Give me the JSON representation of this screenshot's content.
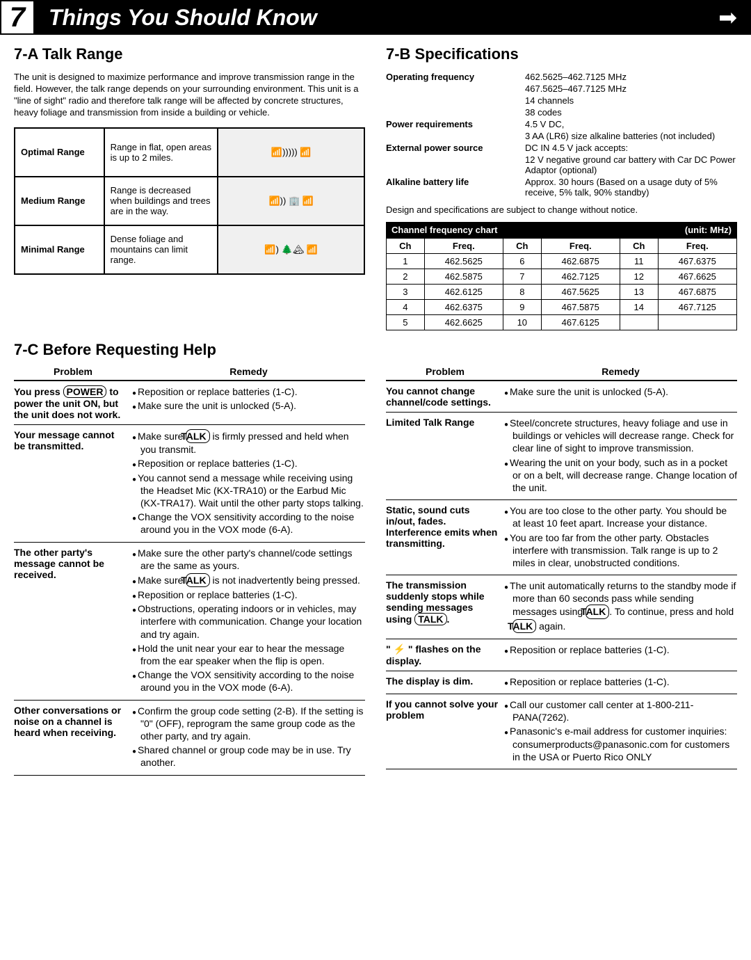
{
  "header": {
    "number": "7",
    "title": "Things You Should Know"
  },
  "sectionA": {
    "title": "7-A  Talk Range",
    "intro": "The unit is designed to maximize performance and improve transmission range in the field. However, the talk range depends on your surrounding environment. This unit is a \"line of sight\" radio and therefore talk range will be affected by concrete structures, heavy foliage and transmission from inside a building or vehicle.",
    "rows": [
      {
        "label": "Optimal Range",
        "desc": "Range in flat, open areas is up to 2 miles."
      },
      {
        "label": "Medium Range",
        "desc": "Range is decreased when buildings and trees are in the way."
      },
      {
        "label": "Minimal Range",
        "desc": "Dense foliage and mountains can limit range."
      }
    ]
  },
  "sectionB": {
    "title": "7-B  Specifications",
    "specs": [
      {
        "label": "Operating frequency",
        "value": "462.5625–462.7125 MHz\n467.5625–467.7125 MHz\n14 channels\n38 codes"
      },
      {
        "label": "Power requirements",
        "value": "4.5 V DC,\n3 AA (LR6) size alkaline batteries (not included)"
      },
      {
        "label": "External power source",
        "value": "DC IN 4.5 V jack accepts:\n12 V negative ground car battery with Car DC Power Adaptor (optional)"
      },
      {
        "label": "Alkaline battery life",
        "value": "Approx. 30 hours (Based on a usage duty of 5% receive, 5% talk, 90% standby)"
      }
    ],
    "note": "Design and specifications are subject to change without notice.",
    "freqTitle": "Channel frequency chart",
    "freqUnit": "(unit: MHz)",
    "freqHeaders": [
      "Ch",
      "Freq.",
      "Ch",
      "Freq.",
      "Ch",
      "Freq."
    ],
    "freqRows": [
      [
        "1",
        "462.5625",
        "6",
        "462.6875",
        "11",
        "467.6375"
      ],
      [
        "2",
        "462.5875",
        "7",
        "462.7125",
        "12",
        "467.6625"
      ],
      [
        "3",
        "462.6125",
        "8",
        "467.5625",
        "13",
        "467.6875"
      ],
      [
        "4",
        "462.6375",
        "9",
        "467.5875",
        "14",
        "467.7125"
      ],
      [
        "5",
        "462.6625",
        "10",
        "467.6125",
        "",
        ""
      ]
    ]
  },
  "sectionC": {
    "title": "7-C  Before Requesting Help",
    "headers": [
      "Problem",
      "Remedy"
    ],
    "left": [
      {
        "problem": "You press [POWER] to power the unit ON, but the unit does not work.",
        "remedies": [
          "Reposition or replace batteries (1-C).",
          "Make sure the unit is unlocked (5-A)."
        ]
      },
      {
        "problem": "Your message cannot be transmitted.",
        "remedies": [
          "Make sure [TALK] is firmly pressed and held when you transmit.",
          "Reposition or replace batteries (1-C).",
          "You cannot send a message while receiving using the Headset Mic (KX-TRA10) or the Earbud Mic (KX-TRA17). Wait until the other party stops talking.",
          "Change the VOX sensitivity according to the noise around you in the VOX mode (6-A)."
        ]
      },
      {
        "problem": "The other party's message cannot be received.",
        "remedies": [
          "Make sure the other party's channel/code settings are the same as yours.",
          "Make sure [TALK] is not inadvertently being pressed.",
          "Reposition or replace batteries (1-C).",
          "Obstructions, operating indoors or in vehicles, may interfere with communication. Change your location and try again.",
          "Hold the unit near your ear to hear the message from the ear speaker when the flip is open.",
          "Change the VOX sensitivity according to the noise around you in the VOX mode (6-A)."
        ]
      },
      {
        "problem": "Other conversations or noise on a channel is heard when receiving.",
        "remedies": [
          "Confirm the group code setting (2-B). If the setting is \"0\" (OFF), reprogram the same group code as the other party, and try again.",
          "Shared channel or group code may be in use. Try another."
        ]
      }
    ],
    "right": [
      {
        "problem": "You cannot change channel/code settings.",
        "remedies": [
          "Make sure the unit is unlocked (5-A)."
        ]
      },
      {
        "problem": "Limited Talk Range",
        "remedies": [
          "Steel/concrete structures, heavy foliage and use in buildings or vehicles will decrease range. Check for clear line of sight to improve transmission.",
          "Wearing the unit on your body, such as in a pocket or on a belt, will decrease range. Change location of the unit."
        ]
      },
      {
        "problem": "Static, sound cuts in/out, fades. Interference emits when transmitting.",
        "remedies": [
          "You are too close to the other party. You should be at least 10 feet apart. Increase your distance.",
          "You are too far from the other party. Obstacles interfere with transmission. Talk range is up to 2 miles in clear, unobstructed conditions."
        ]
      },
      {
        "problem": "The transmission suddenly stops while sending messages using [TALK].",
        "remedies": [
          "The unit automatically returns to the standby mode if more than 60 seconds pass while sending messages using [TALK]. To continue, press and hold [TALK] again."
        ]
      },
      {
        "problem": "\" ⚡ \" flashes on the display.",
        "remedies": [
          "Reposition or replace batteries (1-C)."
        ]
      },
      {
        "problem": "The display is dim.",
        "remedies": [
          "Reposition or replace batteries (1-C)."
        ]
      },
      {
        "problem": "If you cannot solve your problem",
        "remedies": [
          "Call our customer call center at 1-800-211-PANA(7262).",
          "Panasonic's e-mail address for customer inquiries: consumerproducts@panasonic.com for customers in the USA or Puerto Rico ONLY"
        ]
      }
    ]
  }
}
